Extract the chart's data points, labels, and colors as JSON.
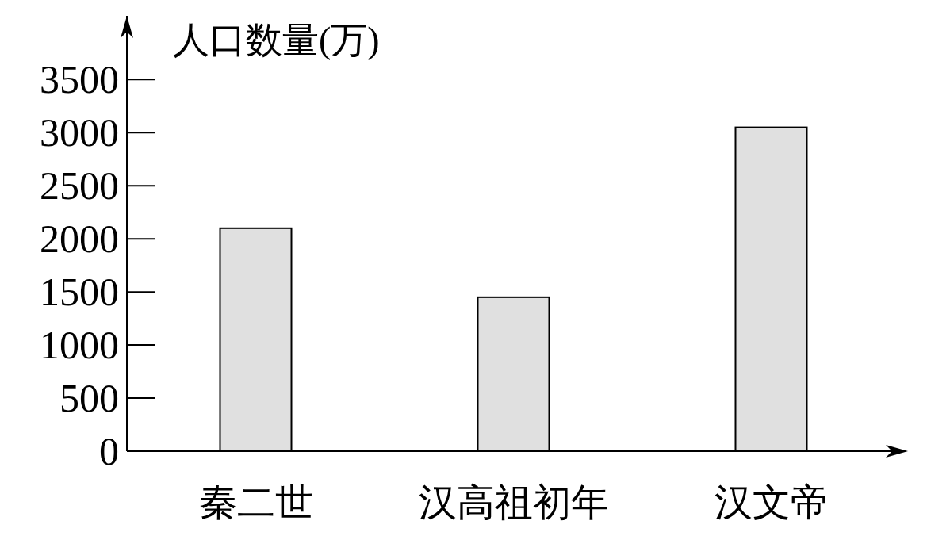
{
  "chart_data": {
    "type": "bar",
    "ylabel": "人口数量(万)",
    "categories": [
      "秦二世",
      "汉高祖初年",
      "汉文帝"
    ],
    "values": [
      2100,
      1450,
      3050
    ],
    "color": "#e0e0e0",
    "ylim": [
      0,
      4100
    ],
    "yticks": [
      0,
      500,
      1000,
      1500,
      2000,
      2500,
      3000,
      3500
    ],
    "grid": false
  }
}
